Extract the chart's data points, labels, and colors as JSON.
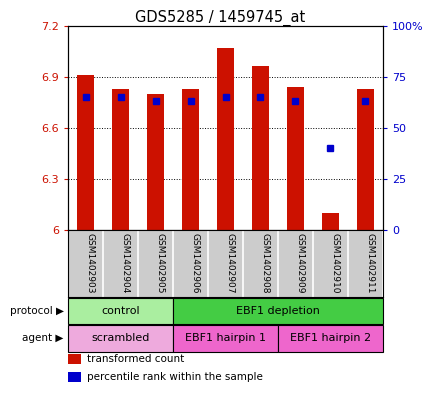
{
  "title": "GDS5285 / 1459745_at",
  "samples": [
    "GSM1402903",
    "GSM1402904",
    "GSM1402905",
    "GSM1402906",
    "GSM1402907",
    "GSM1402908",
    "GSM1402909",
    "GSM1402910",
    "GSM1402911"
  ],
  "transformed_counts": [
    6.91,
    6.83,
    6.8,
    6.83,
    7.07,
    6.96,
    6.84,
    6.1,
    6.83
  ],
  "percentile_ranks": [
    65,
    65,
    63,
    63,
    65,
    65,
    63,
    40,
    63
  ],
  "ylim_left": [
    6.0,
    7.2
  ],
  "ylim_right": [
    0,
    100
  ],
  "yticks_left": [
    6.0,
    6.3,
    6.6,
    6.9,
    7.2
  ],
  "yticks_right": [
    0,
    25,
    50,
    75,
    100
  ],
  "ytick_labels_left": [
    "6",
    "6.3",
    "6.6",
    "6.9",
    "7.2"
  ],
  "ytick_labels_right": [
    "0",
    "25",
    "50",
    "75",
    "100%"
  ],
  "bar_color": "#cc1100",
  "dot_color": "#0000cc",
  "protocol_groups": [
    {
      "label": "control",
      "start": 0,
      "end": 2,
      "color": "#aaeea0"
    },
    {
      "label": "EBF1 depletion",
      "start": 3,
      "end": 8,
      "color": "#44cc44"
    }
  ],
  "agent_groups": [
    {
      "label": "scrambled",
      "start": 0,
      "end": 2,
      "color": "#eeaadd"
    },
    {
      "label": "EBF1 hairpin 1",
      "start": 3,
      "end": 5,
      "color": "#ee66cc"
    },
    {
      "label": "EBF1 hairpin 2",
      "start": 6,
      "end": 8,
      "color": "#ee66cc"
    }
  ],
  "legend_items": [
    {
      "label": "transformed count",
      "color": "#cc1100"
    },
    {
      "label": "percentile rank within the sample",
      "color": "#0000cc"
    }
  ],
  "background_color": "#ffffff",
  "label_color_left": "#cc1100",
  "label_color_right": "#0000cc",
  "sample_bg_color": "#cccccc",
  "border_color": "#000000"
}
